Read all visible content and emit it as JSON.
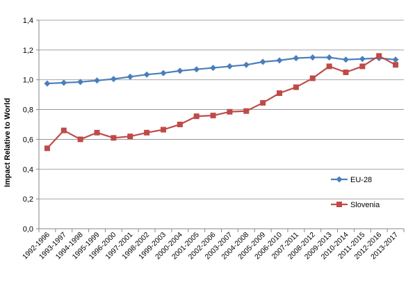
{
  "chart_data": {
    "type": "line",
    "title": "",
    "xlabel": "",
    "ylabel": "Impact Relative to World",
    "ylim": [
      0,
      1.4
    ],
    "yticks": [
      "0,0",
      "0,2",
      "0,4",
      "0,6",
      "0,8",
      "1,0",
      "1,2",
      "1,4"
    ],
    "ytick_values": [
      0,
      0.2,
      0.4,
      0.6,
      0.8,
      1.0,
      1.2,
      1.4
    ],
    "grid": true,
    "legend_position": "right",
    "categories": [
      "1992-1996",
      "1993-1997",
      "1994-1998",
      "1995-1999",
      "1996-2000",
      "1997-2001",
      "1998-2002",
      "1999-2003",
      "2000-2004",
      "2001-2005",
      "2002-2006",
      "2003-2007",
      "2004-2008",
      "2005-2009",
      "2006-2010",
      "2007-2011",
      "2008-2012",
      "2009-2013",
      "2010-2014",
      "2011-2015",
      "2012-2016",
      "2013-2017"
    ],
    "series": [
      {
        "name": "EU-28",
        "color": "#4a7ebb",
        "marker": "diamond",
        "values": [
          0.975,
          0.98,
          0.985,
          0.995,
          1.005,
          1.02,
          1.035,
          1.045,
          1.06,
          1.07,
          1.08,
          1.09,
          1.1,
          1.12,
          1.13,
          1.145,
          1.15,
          1.15,
          1.135,
          1.14,
          1.145,
          1.135
        ]
      },
      {
        "name": "Slovenia",
        "color": "#be4b48",
        "marker": "square",
        "values": [
          0.54,
          0.66,
          0.6,
          0.645,
          0.61,
          0.62,
          0.645,
          0.665,
          0.7,
          0.755,
          0.76,
          0.785,
          0.79,
          0.845,
          0.91,
          0.95,
          1.01,
          1.09,
          1.05,
          1.09,
          1.16,
          1.1
        ]
      }
    ]
  }
}
